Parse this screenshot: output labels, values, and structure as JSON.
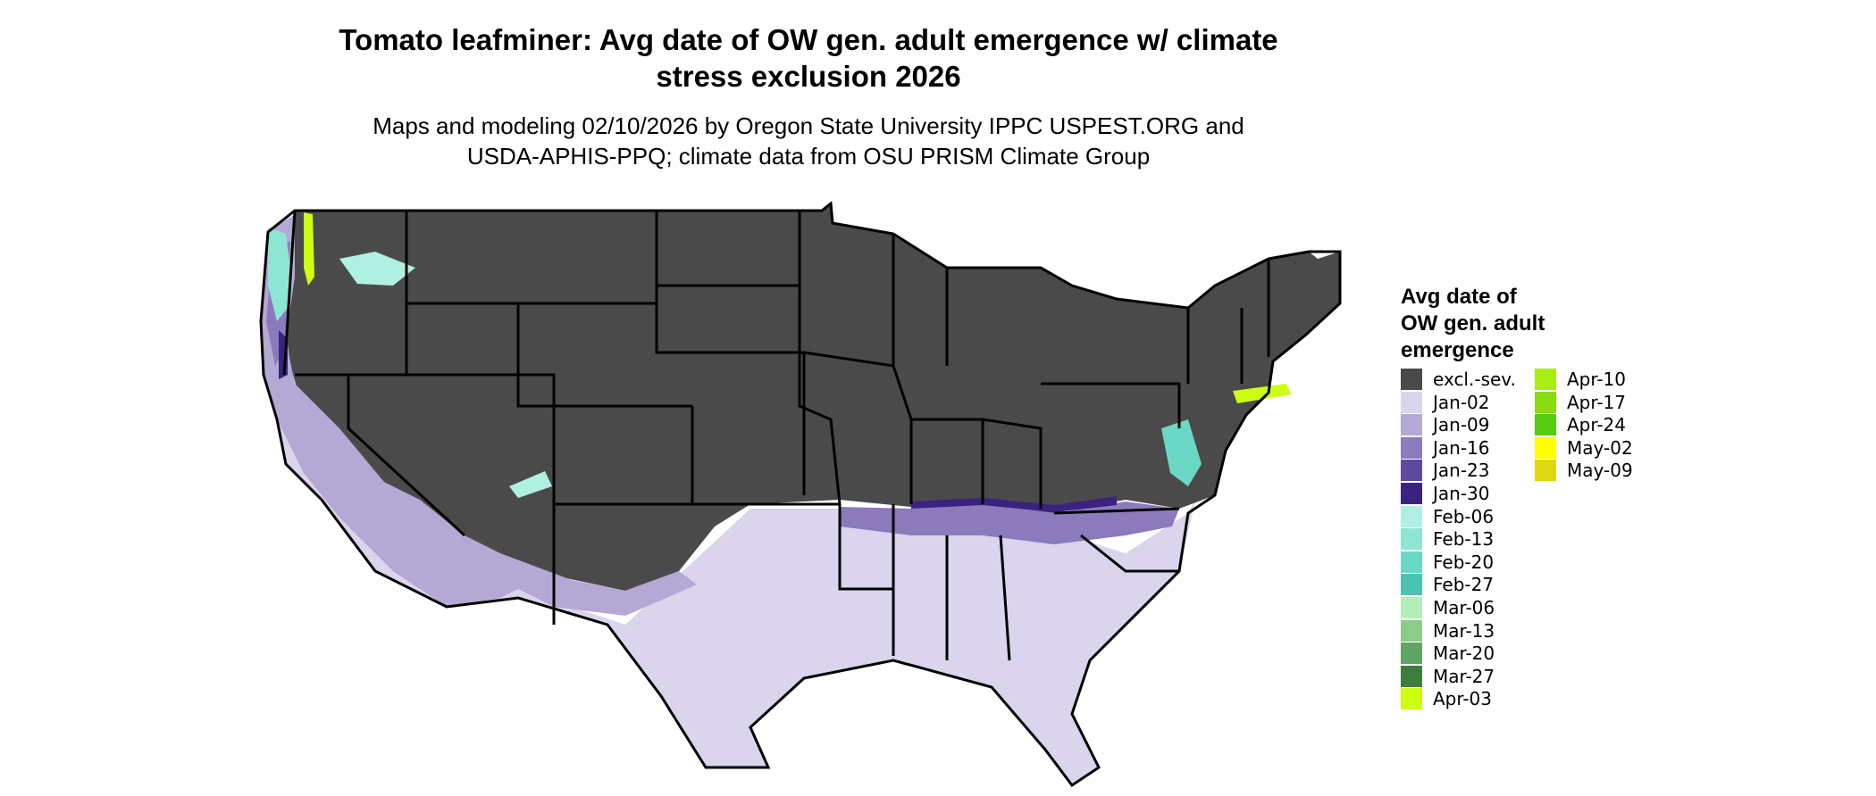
{
  "title_line1": "Tomato leafminer: Avg date of OW gen. adult emergence w/ climate",
  "title_line2": "stress exclusion 2026",
  "subtitle_line1": "Maps and modeling 02/10/2026 by Oregon State University IPPC USPEST.ORG and",
  "subtitle_line2": "USDA-APHIS-PPQ; climate data from OSU PRISM Climate Group",
  "legend": {
    "title_line1": "Avg date of",
    "title_line2": "OW gen. adult",
    "title_line3": "emergence",
    "items": [
      {
        "label": "excl.-sev.",
        "color": "#4a4a4a"
      },
      {
        "label": "Jan-02",
        "color": "#dad4ec"
      },
      {
        "label": "Jan-09",
        "color": "#b4a8d4"
      },
      {
        "label": "Jan-16",
        "color": "#8b7abc"
      },
      {
        "label": "Jan-23",
        "color": "#5e4a9c"
      },
      {
        "label": "Jan-30",
        "color": "#3b2280"
      },
      {
        "label": "Feb-06",
        "color": "#b0f0e2"
      },
      {
        "label": "Feb-13",
        "color": "#8de6d4"
      },
      {
        "label": "Feb-20",
        "color": "#6ad8c4"
      },
      {
        "label": "Feb-27",
        "color": "#4cc2b0"
      },
      {
        "label": "Mar-06",
        "color": "#b6eeb8"
      },
      {
        "label": "Mar-13",
        "color": "#8ccd8c"
      },
      {
        "label": "Mar-20",
        "color": "#60a465"
      },
      {
        "label": "Mar-27",
        "color": "#3e7d3e"
      },
      {
        "label": "Apr-03",
        "color": "#ccff11"
      },
      {
        "label": "Apr-10",
        "color": "#a8ee11"
      },
      {
        "label": "Apr-17",
        "color": "#88dd11"
      },
      {
        "label": "Apr-24",
        "color": "#55cc11"
      },
      {
        "label": "May-02",
        "color": "#ffff00"
      },
      {
        "label": "May-09",
        "color": "#ddd811"
      }
    ]
  }
}
